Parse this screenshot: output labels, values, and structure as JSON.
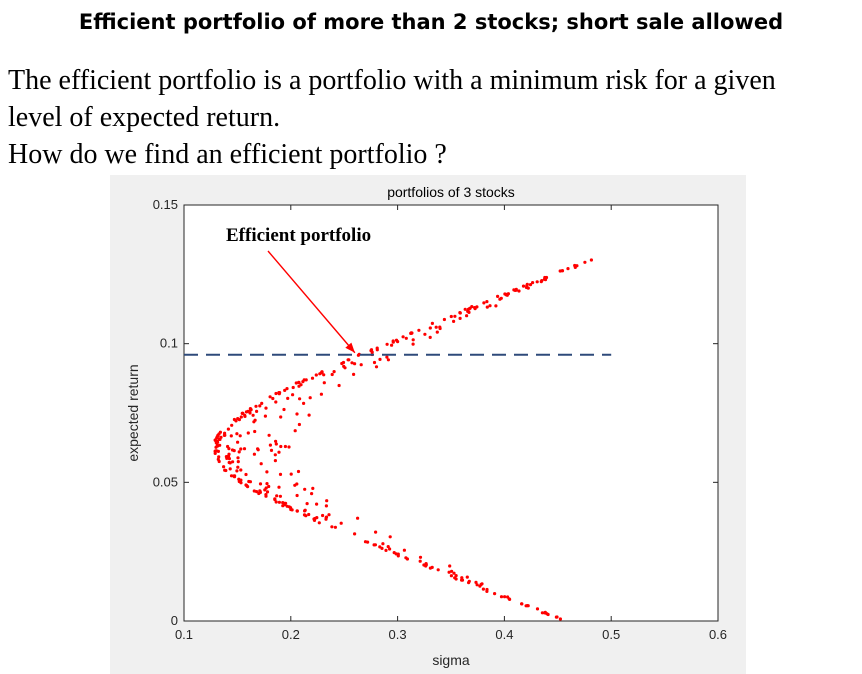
{
  "slide": {
    "title": "Efficient portfolio of more than 2 stocks; short sale allowed",
    "lines": [
      "The efficient portfolio is a portfolio with a minimum risk for a given",
      "level of expected return.",
      "How do we find an efficient portfolio ?"
    ]
  },
  "chart_data": {
    "type": "scatter",
    "title": "portfolios of 3 stocks",
    "xlabel": "sigma",
    "ylabel": "expected return",
    "xlim": [
      0.1,
      0.6
    ],
    "ylim": [
      0,
      0.15
    ],
    "xticks": [
      "0.1",
      "0.2",
      "0.3",
      "0.4",
      "0.5",
      "0.6"
    ],
    "yticks": [
      "0",
      "0.05",
      "0.1",
      "0.15"
    ],
    "grid": false,
    "series": [
      {
        "color": "#ff0000",
        "marker": "dot",
        "frontier": {
          "min_variance_point": {
            "sigma": 0.127,
            "expected_return": 0.062
          },
          "upper_end": {
            "sigma": 0.483,
            "expected_return": 0.131
          },
          "lower_end": {
            "sigma": 0.455,
            "expected_return": 0.0
          },
          "point_count": 400
        }
      }
    ],
    "reference_line": {
      "y": 0.096,
      "x_range": [
        0.1,
        0.5
      ],
      "style": "dashed",
      "color": "#2e4a7a"
    },
    "annotation": {
      "text": "Efficient portfolio",
      "target": {
        "sigma": 0.26,
        "expected_return": 0.096
      },
      "arrow_color": "#ff0000"
    }
  }
}
